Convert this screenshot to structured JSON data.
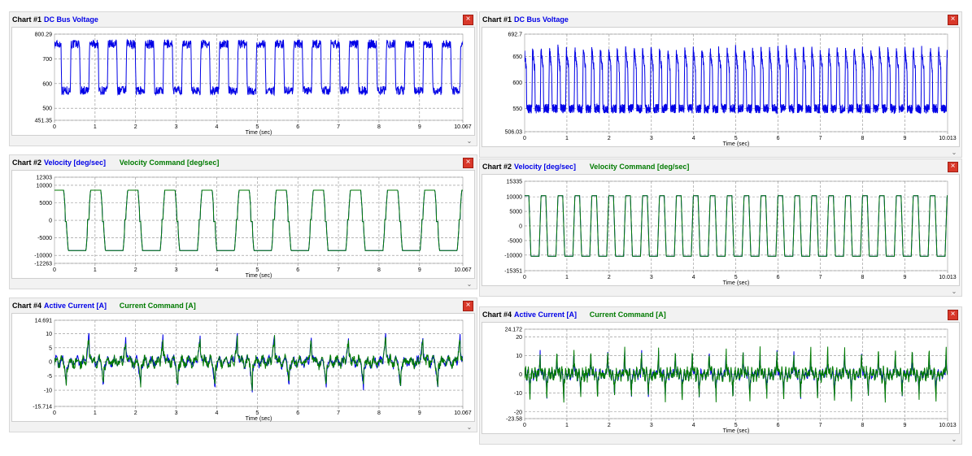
{
  "colors": {
    "blue": "#0000e6",
    "green": "#007a00",
    "close": "#d9382a",
    "grid": "#8c8c8c",
    "panel": "#f2f2f2"
  },
  "icons": {
    "close": "close-icon",
    "collapse": "double-chevron-down-icon"
  },
  "common": {
    "xlabel": "Time (sec)",
    "collapse_glyph": "⌄",
    "close_glyph": "×"
  },
  "charts": [
    {
      "id": "Chart #1",
      "side": "left",
      "row": 0,
      "legend": [
        {
          "text": "DC Bus Voltage",
          "color": "#0000e6"
        }
      ],
      "xlim": [
        0,
        10.067
      ],
      "xtick_labels": [
        "0",
        "1",
        "2",
        "3",
        "4",
        "5",
        "6",
        "7",
        "8",
        "9",
        "10.067"
      ],
      "ytick_labels": [
        "800.29",
        "700",
        "600",
        "500",
        "451.35"
      ]
    },
    {
      "id": "Chart #2",
      "side": "left",
      "row": 1,
      "legend": [
        {
          "text": "Velocity [deg/sec]",
          "color": "#0000e6"
        },
        {
          "text": "Velocity Command [deg/sec]",
          "color": "#007a00"
        }
      ],
      "xlim": [
        0,
        10.067
      ],
      "xtick_labels": [
        "0",
        "1",
        "2",
        "3",
        "4",
        "5",
        "6",
        "7",
        "8",
        "9",
        "10.067"
      ],
      "ytick_labels": [
        "12303",
        "10000",
        "5000",
        "0",
        "-5000",
        "-10000",
        "-12263"
      ]
    },
    {
      "id": "Chart #4",
      "side": "left",
      "row": 2,
      "legend": [
        {
          "text": "Active Current [A]",
          "color": "#0000e6"
        },
        {
          "text": "Current Command [A]",
          "color": "#007a00"
        }
      ],
      "xlim": [
        0,
        10.067
      ],
      "xtick_labels": [
        "0",
        "1",
        "2",
        "3",
        "4",
        "5",
        "6",
        "7",
        "8",
        "9",
        "10.067"
      ],
      "ytick_labels": [
        "14.691",
        "10",
        "5",
        "0",
        "-5",
        "-10",
        "-15.714"
      ]
    },
    {
      "id": "Chart #1",
      "side": "right",
      "row": 0,
      "legend": [
        {
          "text": "DC Bus Voltage",
          "color": "#0000e6"
        }
      ],
      "xlim": [
        0,
        10.013
      ],
      "xtick_labels": [
        "0",
        "1",
        "2",
        "3",
        "4",
        "5",
        "6",
        "7",
        "8",
        "9",
        "10.013"
      ],
      "ytick_labels": [
        "692.7",
        "650",
        "600",
        "550",
        "506.03"
      ]
    },
    {
      "id": "Chart #2",
      "side": "right",
      "row": 1,
      "legend": [
        {
          "text": "Velocity [deg/sec]",
          "color": "#0000e6"
        },
        {
          "text": "Velocity Command [deg/sec]",
          "color": "#007a00"
        }
      ],
      "xlim": [
        0,
        10.013
      ],
      "xtick_labels": [
        "0",
        "1",
        "2",
        "3",
        "4",
        "5",
        "6",
        "7",
        "8",
        "9",
        "10.013"
      ],
      "ytick_labels": [
        "15335",
        "10000",
        "5000",
        "0",
        "-5000",
        "-10000",
        "-15351"
      ]
    },
    {
      "id": "Chart #4",
      "side": "right",
      "row": 2,
      "legend": [
        {
          "text": "Active Current [A]",
          "color": "#0000e6"
        },
        {
          "text": "Current Command [A]",
          "color": "#007a00"
        }
      ],
      "xlim": [
        0,
        10.013
      ],
      "xtick_labels": [
        "0",
        "1",
        "2",
        "3",
        "4",
        "5",
        "6",
        "7",
        "8",
        "9",
        "10.013"
      ],
      "ytick_labels": [
        "24.172",
        "20",
        "10",
        "0",
        "-10",
        "-20",
        "-23.58"
      ]
    }
  ],
  "chart_data": [
    {
      "type": "line",
      "title": "DC Bus Voltage",
      "xlabel": "Time (sec)",
      "ylabel": "",
      "xlim": [
        0,
        10.067
      ],
      "ylim": [
        451.35,
        800.29
      ],
      "series": [
        {
          "name": "DC Bus Voltage",
          "color": "#0000e6",
          "waveform": "pulse",
          "cycles": 22,
          "low": 572,
          "high": 760,
          "duty": 0.5,
          "noise": 18
        }
      ],
      "grid": true
    },
    {
      "type": "line",
      "title": "Velocity [deg/sec] / Velocity Command [deg/sec]",
      "xlabel": "Time (sec)",
      "ylabel": "",
      "xlim": [
        0,
        10.067
      ],
      "ylim": [
        -12263,
        12303
      ],
      "series": [
        {
          "name": "Velocity [deg/sec]",
          "color": "#0000e6",
          "waveform": "trapezoid",
          "cycles": 11,
          "amplitude": 8600,
          "step": 1200,
          "noise": 0
        },
        {
          "name": "Velocity Command [deg/sec]",
          "color": "#007a00",
          "waveform": "trapezoid",
          "cycles": 11,
          "amplitude": 8600,
          "step": 1200,
          "noise": 0
        }
      ],
      "grid": true
    },
    {
      "type": "line",
      "title": "Active Current [A] / Current Command [A]",
      "xlabel": "Time (sec)",
      "ylabel": "",
      "xlim": [
        0,
        10.067
      ],
      "ylim": [
        -15.714,
        14.691
      ],
      "series": [
        {
          "name": "Active Current [A]",
          "color": "#0000e6",
          "waveform": "current",
          "cycles": 11,
          "amplitude": 10,
          "noise": 1.2
        },
        {
          "name": "Current Command [A]",
          "color": "#007a00",
          "waveform": "current",
          "cycles": 11,
          "amplitude": 9,
          "noise": 1.6
        }
      ],
      "grid": true
    },
    {
      "type": "line",
      "title": "DC Bus Voltage",
      "xlabel": "Time (sec)",
      "ylabel": "",
      "xlim": [
        0,
        10.013
      ],
      "ylim": [
        506.03,
        692.7
      ],
      "series": [
        {
          "name": "DC Bus Voltage",
          "color": "#0000e6",
          "waveform": "spike",
          "cycles": 50,
          "low": 550,
          "high": 665,
          "duty": 0.35,
          "noise": 9
        }
      ],
      "grid": true
    },
    {
      "type": "line",
      "title": "Velocity [deg/sec] / Velocity Command [deg/sec]",
      "xlabel": "Time (sec)",
      "ylabel": "",
      "xlim": [
        0,
        10.013
      ],
      "ylim": [
        -15351,
        15335
      ],
      "series": [
        {
          "name": "Velocity [deg/sec]",
          "color": "#0000e6",
          "waveform": "trapezoid",
          "cycles": 25,
          "amplitude": 10400,
          "step": 0,
          "noise": 0
        },
        {
          "name": "Velocity Command [deg/sec]",
          "color": "#007a00",
          "waveform": "trapezoid",
          "cycles": 25,
          "amplitude": 10400,
          "step": 0,
          "noise": 0
        }
      ],
      "grid": true
    },
    {
      "type": "line",
      "title": "Active Current [A] / Current Command [A]",
      "xlabel": "Time (sec)",
      "ylabel": "",
      "xlim": [
        0,
        10.013
      ],
      "ylim": [
        -23.58,
        24.172
      ],
      "series": [
        {
          "name": "Active Current [A]",
          "color": "#0000e6",
          "waveform": "current",
          "cycles": 25,
          "amplitude": 14,
          "noise": 1.5
        },
        {
          "name": "Current Command [A]",
          "color": "#007a00",
          "waveform": "current",
          "cycles": 25,
          "amplitude": 15,
          "noise": 2.5
        }
      ],
      "grid": true
    }
  ]
}
